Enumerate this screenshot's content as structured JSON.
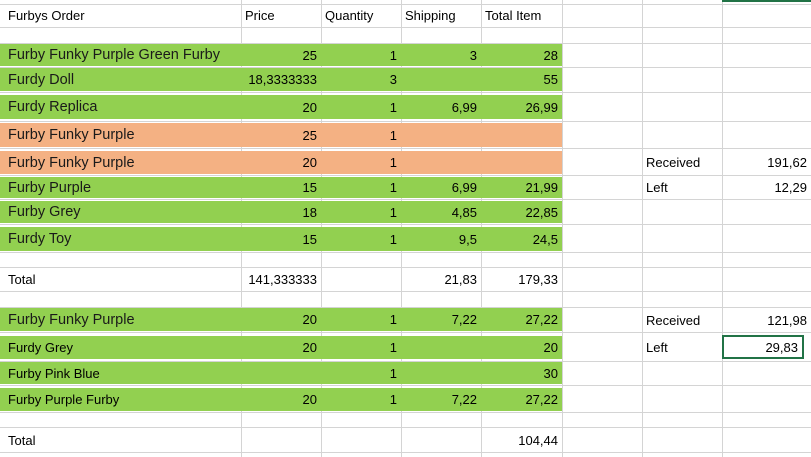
{
  "header": {
    "name": "Furbys Order",
    "price": "Price",
    "quantity": "Quantity",
    "shipping": "Shipping",
    "total_item": "Total Item"
  },
  "orders1": [
    {
      "name": "Furby Funky Purple Green Furby",
      "price": "25",
      "qty": "1",
      "ship": "3",
      "total": "28",
      "color": "#92d050"
    },
    {
      "name": "Furdy Doll",
      "price": "18,3333333",
      "qty": "3",
      "ship": "",
      "total": "55",
      "color": "#92d050"
    },
    {
      "name": "Furdy Replica",
      "price": "20",
      "qty": "1",
      "ship": "6,99",
      "total": "26,99",
      "color": "#92d050"
    },
    {
      "name": "Furby Funky Purple",
      "price": "25",
      "qty": "1",
      "ship": "",
      "total": "",
      "color": "#f4b183"
    },
    {
      "name": "Furby Funky Purple",
      "price": "20",
      "qty": "1",
      "ship": "",
      "total": "",
      "color": "#f4b183"
    },
    {
      "name": "Furby Purple",
      "price": "15",
      "qty": "1",
      "ship": "6,99",
      "total": "21,99",
      "color": "#92d050"
    },
    {
      "name": "Furby Grey",
      "price": "18",
      "qty": "1",
      "ship": "4,85",
      "total": "22,85",
      "color": "#92d050"
    },
    {
      "name": "Furdy Toy",
      "price": "15",
      "qty": "1",
      "ship": "9,5",
      "total": "24,5",
      "color": "#92d050"
    }
  ],
  "total1": {
    "label": "Total",
    "price": "141,333333",
    "ship": "21,83",
    "total": "179,33"
  },
  "orders2": [
    {
      "name": "Furby Funky Purple",
      "price": "20",
      "qty": "1",
      "ship": "7,22",
      "total": "27,22",
      "color": "#92d050"
    },
    {
      "name": "Furdy Grey",
      "price": "20",
      "qty": "1",
      "ship": "",
      "total": "20",
      "color": "#92d050"
    },
    {
      "name": "Furby Pink Blue",
      "price": "",
      "qty": "1",
      "ship": "",
      "total": "30",
      "color": "#92d050"
    },
    {
      "name": "Furby Purple Furby",
      "price": "20",
      "qty": "1",
      "ship": "7,22",
      "total": "27,22",
      "color": "#92d050"
    }
  ],
  "total2": {
    "label": "Total",
    "total": "104,44"
  },
  "summary1": {
    "received_label": "Received",
    "received": "191,62",
    "left_label": "Left",
    "left": "12,29"
  },
  "summary2": {
    "received_label": "Received",
    "received": "121,98",
    "left_label": "Left",
    "left": "29,83"
  }
}
